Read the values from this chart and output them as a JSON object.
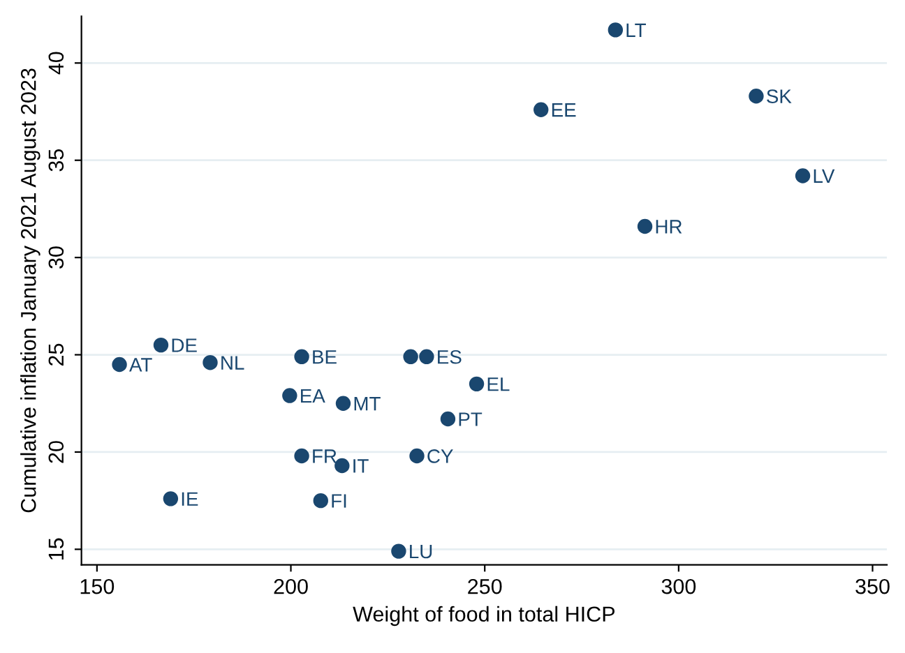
{
  "chart_data": {
    "type": "scatter",
    "xlabel": "Weight of food in total HICP",
    "ylabel": "Cumulative inflation January 2021 August 2023",
    "x": [
      283.7,
      264.5,
      320.0,
      332.0,
      291.3,
      166.5,
      155.8,
      179.2,
      202.8,
      230.9,
      235.0,
      247.9,
      199.7,
      213.5,
      240.5,
      202.8,
      213.2,
      232.5,
      169.0,
      207.7,
      227.8
    ],
    "series": [
      {
        "color": "#1a476f",
        "values": [
          41.7,
          37.6,
          38.3,
          34.2,
          31.6,
          25.5,
          24.5,
          24.6,
          24.9,
          24.9,
          24.9,
          23.5,
          22.9,
          22.5,
          21.7,
          19.8,
          19.3,
          19.8,
          17.6,
          17.5,
          14.9
        ]
      }
    ],
    "annotations": [
      {
        "text": "LT",
        "x": 283.7,
        "y": 41.7
      },
      {
        "text": "EE",
        "x": 264.5,
        "y": 37.6
      },
      {
        "text": "SK",
        "x": 320.0,
        "y": 38.3
      },
      {
        "text": "LV",
        "x": 332.0,
        "y": 34.2
      },
      {
        "text": "HR",
        "x": 291.3,
        "y": 31.6
      },
      {
        "text": "DE",
        "x": 166.5,
        "y": 25.5
      },
      {
        "text": "AT",
        "x": 155.8,
        "y": 24.5
      },
      {
        "text": "NL",
        "x": 179.2,
        "y": 24.6
      },
      {
        "text": "BE",
        "x": 202.8,
        "y": 24.9
      },
      {
        "text": "ES",
        "x": 235.0,
        "y": 24.9
      },
      {
        "text": "EL",
        "x": 247.9,
        "y": 23.5
      },
      {
        "text": "EA",
        "x": 199.7,
        "y": 22.9
      },
      {
        "text": "MT",
        "x": 213.5,
        "y": 22.5
      },
      {
        "text": "PT",
        "x": 240.5,
        "y": 21.7
      },
      {
        "text": "FR",
        "x": 202.8,
        "y": 19.8
      },
      {
        "text": "IT",
        "x": 213.2,
        "y": 19.3
      },
      {
        "text": "CY",
        "x": 232.5,
        "y": 19.8
      },
      {
        "text": "IE",
        "x": 169.0,
        "y": 17.6
      },
      {
        "text": "FI",
        "x": 207.7,
        "y": 17.5
      },
      {
        "text": "LU",
        "x": 227.8,
        "y": 14.9
      }
    ],
    "xlim": [
      146,
      353.7
    ],
    "ylim": [
      14.2,
      42.4
    ],
    "xticks": [
      150,
      200,
      250,
      300,
      350
    ],
    "yticks": [
      15,
      20,
      25,
      30,
      35,
      40
    ],
    "grid": "y",
    "marker": "circle",
    "legend": false
  }
}
